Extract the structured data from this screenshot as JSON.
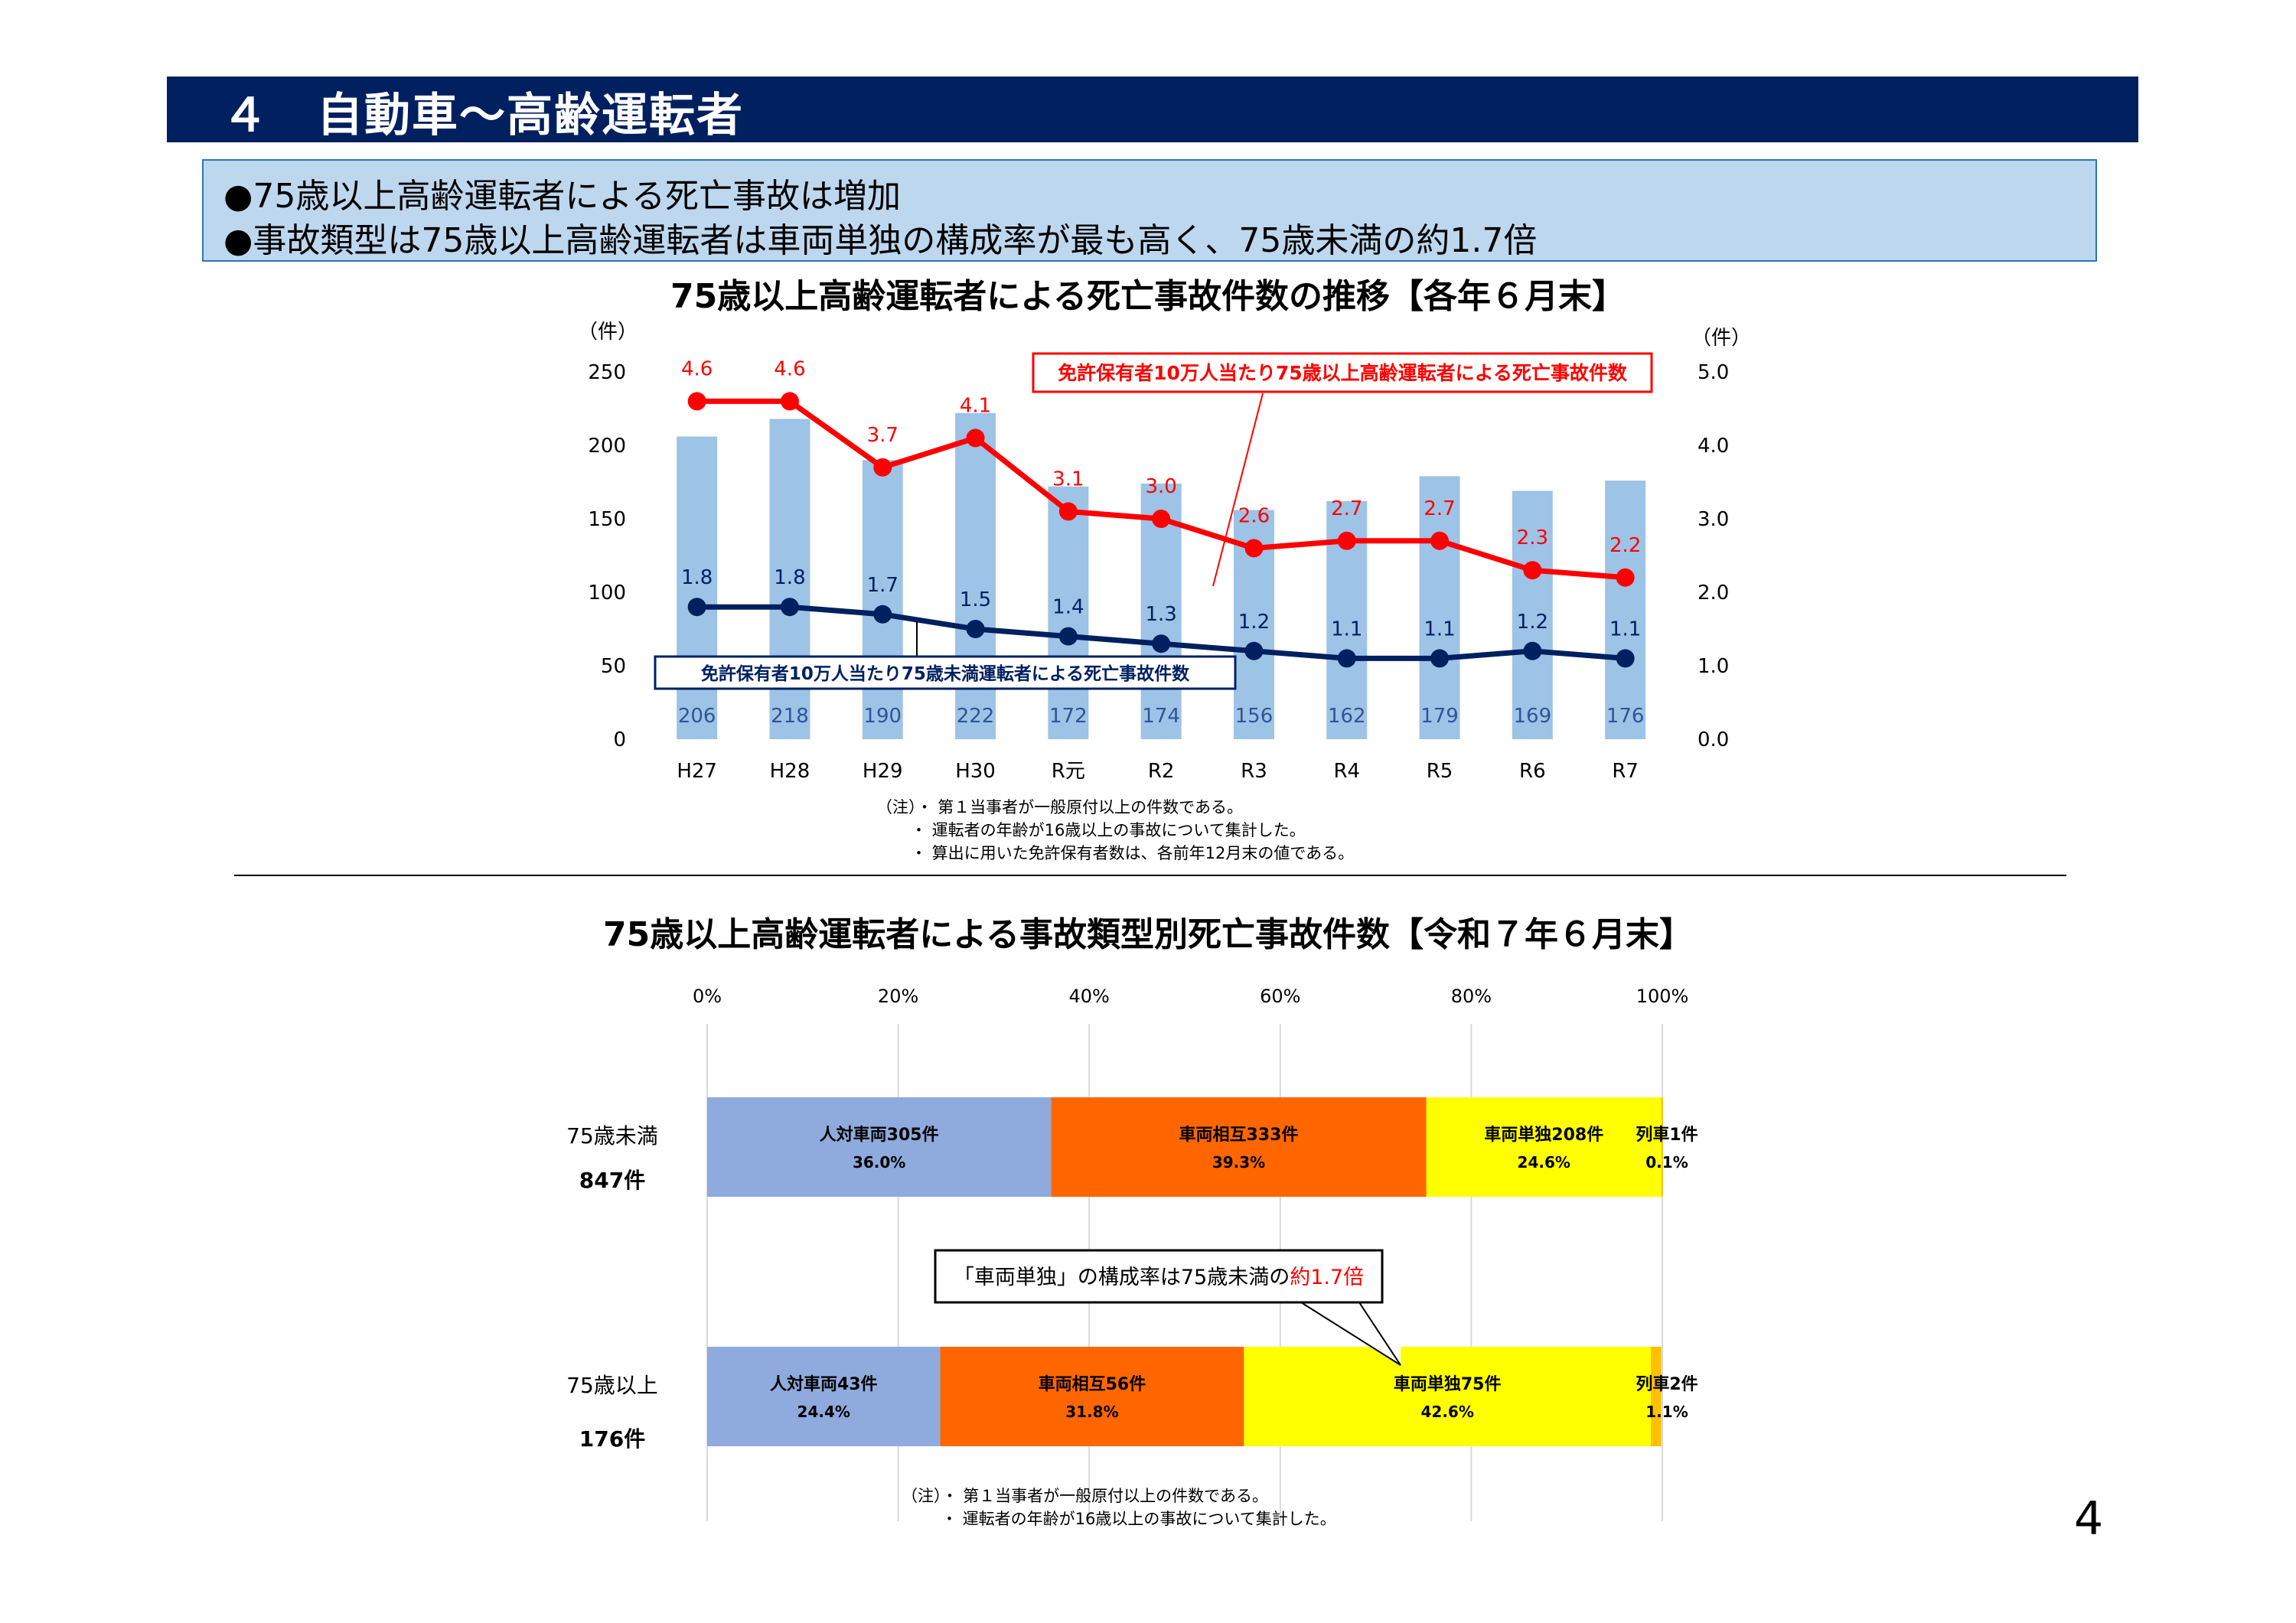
{
  "header": {
    "title": "４　自動車～高齢運転者"
  },
  "summary": {
    "lines": [
      "●75歳以上高齢運転者による死亡事故は増加",
      "●事故類型は75歳以上高齢運転者は車両単独の構成率が最も高く、75歳未満の約1.7倍"
    ]
  },
  "page_number": "4",
  "chart_data": [
    {
      "type": "bar",
      "title": "75歳以上高齢運転者による死亡事故件数の推移【各年６月末】",
      "y_unit_left": "（件）",
      "y_unit_right": "（件）",
      "categories": [
        "H27",
        "H28",
        "H29",
        "H30",
        "R元",
        "R2",
        "R3",
        "R4",
        "R5",
        "R6",
        "R7"
      ],
      "ylim": [
        0,
        250
      ],
      "yticks": [
        "0",
        "50",
        "100",
        "150",
        "200",
        "250"
      ],
      "y2lim": [
        0,
        5
      ],
      "y2ticks": [
        "0.0",
        "1.0",
        "2.0",
        "3.0",
        "4.0",
        "5.0"
      ],
      "series": [
        {
          "type": "bar",
          "values": [
            206,
            218,
            190,
            222,
            172,
            174,
            156,
            162,
            179,
            169,
            176
          ],
          "color": "#9dc3e6"
        },
        {
          "type": "line",
          "axis": "right",
          "name": "免許保有者10万人当たり75歳以上高齢運転者による死亡事故件数",
          "values": [
            4.6,
            4.6,
            3.7,
            4.1,
            3.1,
            3.0,
            2.6,
            2.7,
            2.7,
            2.3,
            2.2
          ],
          "labels": [
            "4.6",
            "4.6",
            "3.7",
            "4.1",
            "3.1",
            "3.0",
            "2.6",
            "2.7",
            "2.7",
            "2.3",
            "2.2"
          ],
          "color": "#ff0000"
        },
        {
          "type": "line",
          "axis": "right",
          "name": "免許保有者10万人当たり75歳未満運転者による死亡事故件数",
          "values": [
            1.8,
            1.8,
            1.7,
            1.5,
            1.4,
            1.3,
            1.2,
            1.1,
            1.1,
            1.2,
            1.1
          ],
          "labels": [
            "1.8",
            "1.8",
            "1.7",
            "1.5",
            "1.4",
            "1.3",
            "1.2",
            "1.1",
            "1.1",
            "1.2",
            "1.1"
          ],
          "color": "#002060"
        }
      ],
      "notes": [
        "（注）・ 第１当事者が一般原付以上の件数である。",
        "・ 運転者の年齢が16歳以上の事故について集計した。",
        "・ 算出に用いた免許保有者数は、各前年12月末の値である。"
      ]
    },
    {
      "type": "bar",
      "subtype": "stacked-horizontal-percent",
      "title": "75歳以上高齢運転者による事故類型別死亡事故件数【令和７年６月末】",
      "xticks": [
        "0%",
        "20%",
        "40%",
        "60%",
        "80%",
        "100%"
      ],
      "xlim": [
        0,
        100
      ],
      "rows": [
        {
          "label": "75歳未満",
          "total": "847件",
          "segments": [
            {
              "name": "人対車両",
              "count_label": "人対車両305件",
              "pct": 36.0,
              "pct_label": "36.0%",
              "color": "#8faadc"
            },
            {
              "name": "車両相互",
              "count_label": "車両相互333件",
              "pct": 39.3,
              "pct_label": "39.3%",
              "color": "#ff6600"
            },
            {
              "name": "車両単独",
              "count_label": "車両単独208件",
              "pct": 24.6,
              "pct_label": "24.6%",
              "color": "#ffff00"
            },
            {
              "name": "列車",
              "count_label": "列車1件",
              "pct": 0.1,
              "pct_label": "0.1%",
              "color": "#ffc000"
            }
          ]
        },
        {
          "label": "75歳以上",
          "total": "176件",
          "segments": [
            {
              "name": "人対車両",
              "count_label": "人対車両43件",
              "pct": 24.4,
              "pct_label": "24.4%",
              "color": "#8faadc"
            },
            {
              "name": "車両相互",
              "count_label": "車両相互56件",
              "pct": 31.8,
              "pct_label": "31.8%",
              "color": "#ff6600"
            },
            {
              "name": "車両単独",
              "count_label": "車両単独75件",
              "pct": 42.6,
              "pct_label": "42.6%",
              "color": "#ffff00"
            },
            {
              "name": "列車",
              "count_label": "列車2件",
              "pct": 1.1,
              "pct_label": "1.1%",
              "color": "#ffc000"
            }
          ]
        }
      ],
      "callout": {
        "text_main": "「車両単独」の構成率は75歳未満の",
        "text_highlight": "約1.7倍",
        "highlight_color": "#ff0000"
      },
      "notes": [
        "（注）・ 第１当事者が一般原付以上の件数である。",
        "・ 運転者の年齢が16歳以上の事故について集計した。"
      ]
    }
  ]
}
